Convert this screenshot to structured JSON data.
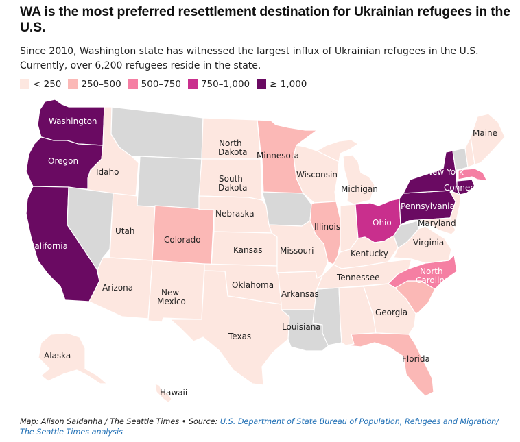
{
  "header": {
    "title": "WA is the most preferred resettlement destination for Ukrainian refugees in the U.S.",
    "subtitle": "Since 2010, Washington state has witnessed the largest influx of Ukrainian refugees in the U.S. Currently, over 6,200 refugees reside in the state."
  },
  "legend": [
    {
      "label": "< 250",
      "color": "#fde7e0"
    },
    {
      "label": "250–500",
      "color": "#fbb8b6"
    },
    {
      "label": "500–750",
      "color": "#f57fa3"
    },
    {
      "label": "750–1,000",
      "color": "#c92f8d"
    },
    {
      "label": "≥ 1,000",
      "color": "#6a0a62"
    }
  ],
  "colors": {
    "no_data": "#d8d8d8",
    "under_250": "#fde7e0",
    "250_500": "#fbb8b6",
    "500_750": "#f57fa3",
    "750_1000": "#c92f8d",
    "over_1000": "#6a0a62"
  },
  "map_labels": {
    "washington": "Washington",
    "oregon": "Oregon",
    "california": "California",
    "idaho": "Idaho",
    "utah": "Utah",
    "arizona": "Arizona",
    "colorado": "Colorado",
    "new_mexico_1": "New",
    "new_mexico_2": "Mexico",
    "north_dakota_1": "North",
    "north_dakota_2": "Dakota",
    "south_dakota_1": "South",
    "south_dakota_2": "Dakota",
    "nebraska": "Nebraska",
    "kansas": "Kansas",
    "oklahoma": "Oklahoma",
    "texas": "Texas",
    "minnesota": "Minnesota",
    "wisconsin": "Wisconsin",
    "michigan": "Michigan",
    "illinois": "Illinois",
    "missouri": "Missouri",
    "arkansas": "Arkansas",
    "louisiana": "Louisiana",
    "kentucky": "Kentucky",
    "tennessee": "Tennessee",
    "ohio": "Ohio",
    "georgia": "Georgia",
    "florida": "Florida",
    "north_carolina_1": "North",
    "north_carolina_2": "Carolina",
    "virginia": "Virginia",
    "maryland": "Maryland",
    "pennsylvania": "Pennsylvania",
    "new_york": "New York",
    "connecticut": "Connecticut",
    "maine": "Maine",
    "alaska": "Alaska",
    "hawaii": "Hawaii"
  },
  "footer": {
    "credit": "Map: Alison Saldanha / The Seattle Times • Source: ",
    "source": "U.S. Department of State Bureau of Population, Refugees and Migration/ The Seattle Times analysis"
  }
}
